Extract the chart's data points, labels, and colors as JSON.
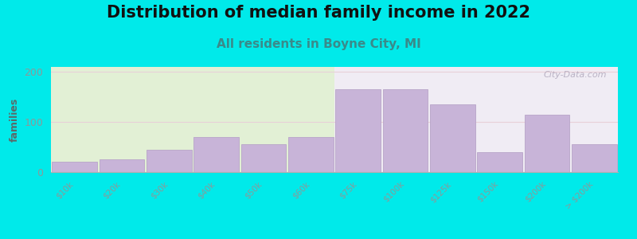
{
  "title": "Distribution of median family income in 2022",
  "subtitle": "All residents in Boyne City, MI",
  "ylabel": "families",
  "categories": [
    "$10k",
    "$20k",
    "$30k",
    "$40k",
    "$50k",
    "$60k",
    "$75k",
    "$100k",
    "$125k",
    "$150k",
    "$200k",
    "> $200k"
  ],
  "values": [
    20,
    25,
    45,
    70,
    55,
    70,
    165,
    165,
    135,
    40,
    115,
    55
  ],
  "bar_color": "#c8b4d8",
  "bar_edgecolor": "#b8a4c8",
  "background_outer": "#00eaea",
  "background_plot_left": "#e2f0d5",
  "background_plot_right": "#f0ecf4",
  "title_fontsize": 15,
  "subtitle_fontsize": 11,
  "subtitle_color": "#3a8a8a",
  "ylabel_color": "#5a6a6a",
  "tick_color": "#8a9a9a",
  "grid_color": "#e8d0d8",
  "ylim": [
    0,
    210
  ],
  "yticks": [
    0,
    100,
    200
  ],
  "watermark": "City-Data.com"
}
